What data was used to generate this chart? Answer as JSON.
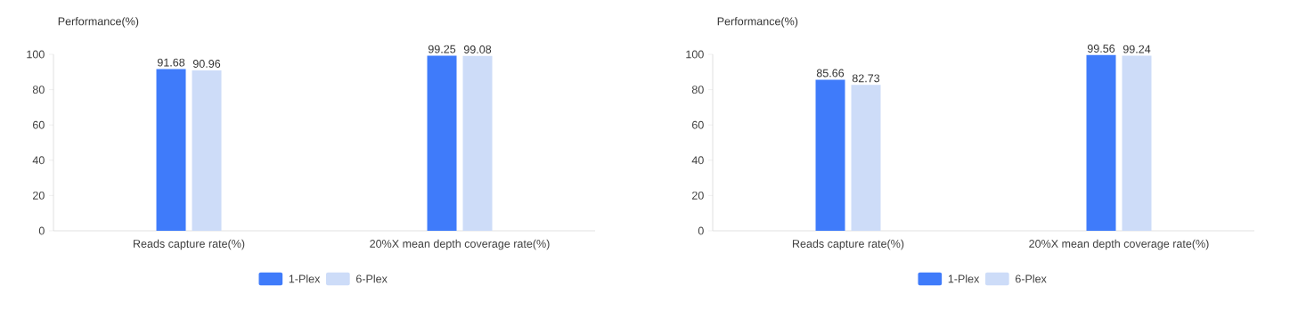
{
  "chart_data": [
    {
      "type": "bar",
      "ylabel": "Performance(%)",
      "categories": [
        "Reads capture rate(%)",
        "20%X mean depth coverage rate(%)"
      ],
      "series": [
        {
          "name": "1-Plex",
          "color": "#3f7bfa",
          "values": [
            91.68,
            99.25
          ]
        },
        {
          "name": "6-Plex",
          "color": "#cddcf8",
          "values": [
            90.96,
            99.08
          ]
        }
      ],
      "ylim": [
        0,
        100
      ],
      "yticks": [
        0,
        20,
        40,
        60,
        80,
        100
      ],
      "grid": false,
      "legend": "bottom",
      "data_labels": true
    },
    {
      "type": "bar",
      "ylabel": "Performance(%)",
      "categories": [
        "Reads capture rate(%)",
        "20%X mean depth coverage rate(%)"
      ],
      "series": [
        {
          "name": "1-Plex",
          "color": "#3f7bfa",
          "values": [
            85.66,
            99.56
          ]
        },
        {
          "name": "6-Plex",
          "color": "#cddcf8",
          "values": [
            82.73,
            99.24
          ]
        }
      ],
      "ylim": [
        0,
        100
      ],
      "yticks": [
        0,
        20,
        40,
        60,
        80,
        100
      ],
      "grid": false,
      "legend": "bottom",
      "data_labels": true
    }
  ]
}
